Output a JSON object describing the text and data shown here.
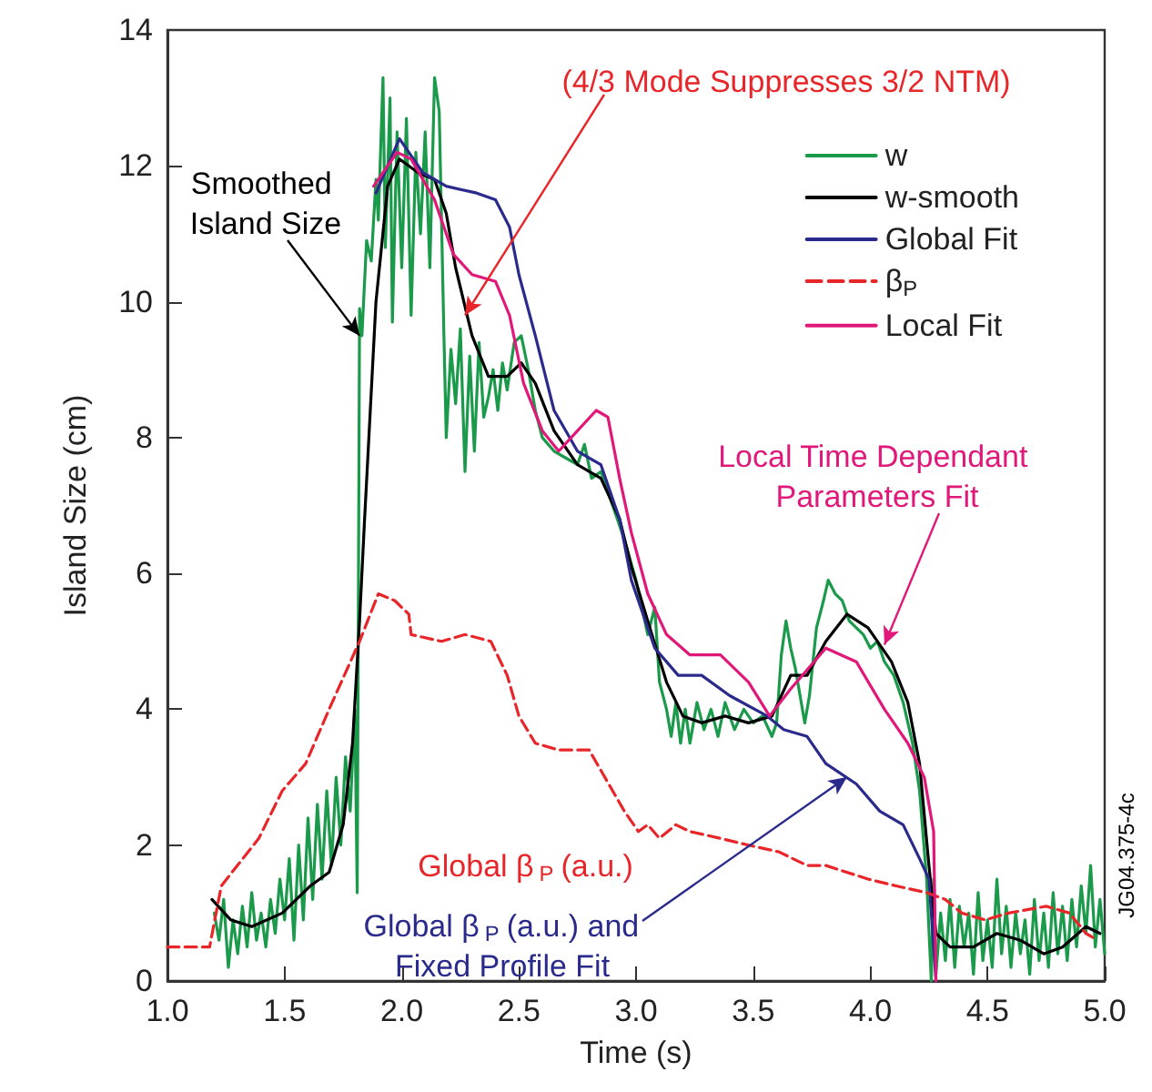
{
  "chart_data": {
    "type": "line",
    "xlabel": "Time (s)",
    "ylabel": "Island Size (cm)",
    "xlim": [
      1,
      5
    ],
    "ylim": [
      0,
      14
    ],
    "xticks": [
      {
        "value": 1,
        "label": "1.0"
      },
      {
        "value": 1.5,
        "label": "1.5"
      },
      {
        "value": 2,
        "label": "2.0"
      },
      {
        "value": 2.5,
        "label": "2.5"
      },
      {
        "value": 3,
        "label": "3.0"
      },
      {
        "value": 3.5,
        "label": "3.5"
      },
      {
        "value": 4,
        "label": "4.0"
      },
      {
        "value": 4.5,
        "label": "4.5"
      },
      {
        "value": 5,
        "label": "5.0"
      }
    ],
    "yticks": [
      0,
      2,
      4,
      6,
      8,
      10,
      12,
      14
    ],
    "legend": "top right",
    "marker": "none",
    "series": [
      {
        "name": "w",
        "color": "#1a9a4a",
        "x": [
          1.2,
          1.22,
          1.24,
          1.26,
          1.28,
          1.3,
          1.32,
          1.34,
          1.36,
          1.38,
          1.4,
          1.42,
          1.44,
          1.46,
          1.48,
          1.5,
          1.52,
          1.54,
          1.56,
          1.58,
          1.6,
          1.62,
          1.64,
          1.66,
          1.68,
          1.7,
          1.72,
          1.74,
          1.76,
          1.78,
          1.8,
          1.81,
          1.82,
          1.83,
          1.85,
          1.87,
          1.89,
          1.9,
          1.92,
          1.93,
          1.95,
          1.96,
          1.98,
          2.0,
          2.02,
          2.04,
          2.06,
          2.08,
          2.1,
          2.12,
          2.14,
          2.16,
          2.18,
          2.19,
          2.21,
          2.23,
          2.25,
          2.27,
          2.29,
          2.31,
          2.33,
          2.35,
          2.37,
          2.39,
          2.41,
          2.43,
          2.45,
          2.48,
          2.51,
          2.54,
          2.57,
          2.6,
          2.65,
          2.7,
          2.75,
          2.78,
          2.81,
          2.85,
          2.9,
          2.95,
          3.0,
          3.05,
          3.08,
          3.1,
          3.13,
          3.15,
          3.17,
          3.19,
          3.21,
          3.23,
          3.26,
          3.29,
          3.32,
          3.35,
          3.38,
          3.42,
          3.46,
          3.5,
          3.54,
          3.58,
          3.6,
          3.62,
          3.64,
          3.66,
          3.68,
          3.7,
          3.72,
          3.74,
          3.77,
          3.8,
          3.82,
          3.85,
          3.88,
          3.91,
          3.94,
          3.97,
          4.0,
          4.03,
          4.06,
          4.1,
          4.14,
          4.18,
          4.21,
          4.24,
          4.26,
          4.27,
          4.28,
          4.3,
          4.32,
          4.34,
          4.36,
          4.38,
          4.4,
          4.42,
          4.44,
          4.46,
          4.48,
          4.5,
          4.52,
          4.54,
          4.56,
          4.58,
          4.6,
          4.62,
          4.64,
          4.66,
          4.68,
          4.7,
          4.72,
          4.74,
          4.76,
          4.78,
          4.8,
          4.82,
          4.84,
          4.86,
          4.88,
          4.9,
          4.92,
          4.94,
          4.96,
          4.98,
          5.0
        ],
        "values": [
          1.0,
          0.6,
          1.2,
          0.2,
          0.9,
          0.4,
          1.1,
          0.5,
          1.3,
          0.6,
          1.0,
          0.5,
          1.2,
          0.7,
          1.5,
          0.9,
          1.8,
          0.6,
          2.0,
          0.9,
          2.4,
          1.2,
          2.6,
          1.5,
          2.8,
          1.7,
          3.0,
          2.0,
          3.3,
          2.5,
          4.0,
          1.3,
          9.9,
          9.5,
          10.9,
          10.6,
          11.8,
          11.2,
          13.3,
          10.8,
          13.0,
          9.7,
          12.5,
          10.5,
          12.7,
          9.8,
          12.2,
          11.0,
          12.5,
          10.5,
          13.3,
          12.8,
          9.5,
          8.0,
          9.3,
          8.5,
          9.6,
          7.5,
          9.2,
          7.8,
          9.4,
          8.3,
          8.6,
          9.0,
          8.4,
          9.1,
          8.7,
          9.4,
          9.5,
          9.0,
          8.4,
          8.0,
          7.8,
          7.7,
          7.6,
          7.9,
          7.4,
          7.5,
          7.0,
          6.5,
          5.9,
          5.1,
          5.5,
          4.4,
          4.0,
          3.6,
          4.1,
          3.5,
          4.0,
          3.5,
          4.1,
          3.7,
          4.0,
          3.6,
          4.1,
          3.7,
          4.0,
          3.8,
          3.9,
          3.6,
          3.8,
          4.8,
          5.3,
          4.9,
          4.6,
          4.2,
          3.8,
          4.2,
          5.2,
          5.6,
          5.9,
          5.7,
          5.6,
          5.3,
          5.2,
          5.1,
          4.9,
          5.0,
          4.7,
          4.5,
          4.1,
          3.5,
          2.8,
          1.5,
          0.0,
          1.5,
          0.1,
          1.0,
          0.3,
          1.2,
          0.2,
          1.1,
          0.5,
          1.0,
          0.1,
          1.3,
          0.3,
          0.9,
          0.2,
          1.5,
          0.4,
          1.1,
          0.2,
          1.0,
          0.4,
          0.9,
          0.1,
          1.2,
          0.3,
          1.0,
          0.2,
          1.3,
          0.4,
          1.1,
          0.3,
          1.2,
          0.5,
          1.4,
          0.7,
          1.7,
          0.5,
          1.2,
          0.4
        ]
      },
      {
        "name": "w-smooth",
        "color": "#000000",
        "x": [
          1.19,
          1.27,
          1.36,
          1.49,
          1.61,
          1.69,
          1.75,
          1.79,
          1.82,
          1.84,
          1.89,
          1.94,
          1.99,
          2.07,
          2.14,
          2.19,
          2.23,
          2.3,
          2.37,
          2.45,
          2.51,
          2.57,
          2.65,
          2.75,
          2.85,
          2.93,
          2.98,
          3.05,
          3.13,
          3.2,
          3.28,
          3.38,
          3.48,
          3.58,
          3.66,
          3.73,
          3.81,
          3.9,
          3.99,
          4.09,
          4.16,
          4.21,
          4.25,
          4.28,
          4.34,
          4.44,
          4.54,
          4.64,
          4.74,
          4.82,
          4.92,
          4.98
        ],
        "values": [
          1.2,
          0.9,
          0.8,
          1.0,
          1.4,
          1.6,
          2.3,
          3.5,
          5.3,
          6.7,
          10.0,
          11.7,
          12.1,
          11.9,
          11.8,
          11.3,
          10.5,
          9.5,
          8.9,
          8.9,
          9.1,
          8.8,
          8.1,
          7.6,
          7.4,
          6.8,
          6.1,
          5.3,
          4.4,
          3.9,
          3.8,
          3.9,
          3.8,
          3.9,
          4.5,
          4.5,
          5.0,
          5.4,
          5.2,
          4.7,
          4.1,
          3.2,
          1.7,
          0.7,
          0.5,
          0.5,
          0.7,
          0.6,
          0.4,
          0.5,
          0.8,
          0.7
        ]
      },
      {
        "name": "Global Fit",
        "color": "#2a2a8c",
        "x": [
          1.89,
          1.99,
          2.09,
          2.19,
          2.32,
          2.4,
          2.46,
          2.5,
          2.57,
          2.65,
          2.75,
          2.85,
          2.93,
          2.98,
          3.08,
          3.18,
          3.28,
          3.4,
          3.56,
          3.63,
          3.73,
          3.81,
          3.94,
          4.04,
          4.14,
          4.21,
          4.25,
          4.28
        ],
        "values": [
          11.6,
          12.4,
          11.9,
          11.7,
          11.6,
          11.5,
          11.1,
          10.4,
          9.5,
          8.4,
          7.8,
          7.6,
          6.8,
          5.9,
          4.9,
          4.5,
          4.5,
          4.2,
          3.9,
          3.7,
          3.6,
          3.2,
          2.9,
          2.5,
          2.3,
          1.8,
          1.5,
          0.0
        ]
      },
      {
        "name": "β$_{P}$",
        "color": "#e8262a",
        "line_style": "dashed",
        "x": [
          1.0,
          1.08,
          1.18,
          1.23,
          1.39,
          1.49,
          1.59,
          1.69,
          1.82,
          1.9,
          1.97,
          2.03,
          2.04,
          2.17,
          2.27,
          2.38,
          2.45,
          2.5,
          2.57,
          2.67,
          2.8,
          2.95,
          3.01,
          3.05,
          3.1,
          3.17,
          3.23,
          3.36,
          3.48,
          3.61,
          3.73,
          3.81,
          3.99,
          4.11,
          4.24,
          4.32,
          4.39,
          4.49,
          4.59,
          4.75,
          4.85,
          4.92,
          4.97
        ],
        "values": [
          0.5,
          0.5,
          0.5,
          1.4,
          2.1,
          2.8,
          3.2,
          4.0,
          5.0,
          5.7,
          5.6,
          5.4,
          5.1,
          5.0,
          5.1,
          5.0,
          4.5,
          3.9,
          3.5,
          3.4,
          3.4,
          2.5,
          2.2,
          2.3,
          2.1,
          2.3,
          2.2,
          2.1,
          2.0,
          1.9,
          1.7,
          1.7,
          1.5,
          1.4,
          1.3,
          1.2,
          1.0,
          0.9,
          1.0,
          1.1,
          1.0,
          0.7,
          0.6
        ]
      },
      {
        "name": "Local Fit",
        "color": "#e0187a",
        "x": [
          1.88,
          1.98,
          2.04,
          2.14,
          2.22,
          2.3,
          2.4,
          2.46,
          2.52,
          2.6,
          2.67,
          2.75,
          2.83,
          2.88,
          2.93,
          2.98,
          3.05,
          3.13,
          3.23,
          3.36,
          3.48,
          3.57,
          3.66,
          3.81,
          3.94,
          4.06,
          4.16,
          4.23,
          4.27,
          4.28
        ],
        "values": [
          11.7,
          12.2,
          12.1,
          11.5,
          10.7,
          10.4,
          10.3,
          9.8,
          8.8,
          8.1,
          7.8,
          8.1,
          8.4,
          8.3,
          7.4,
          6.6,
          5.7,
          5.1,
          4.8,
          4.8,
          4.4,
          3.9,
          4.3,
          4.9,
          4.7,
          4.0,
          3.5,
          3.0,
          2.2,
          0.0
        ]
      }
    ],
    "annotations": [
      {
        "text": "(4/3 Mode Suppresses 3/2 NTM)",
        "x": 2.27,
        "y": 9.8
      },
      {
        "text": "Smoothed Island Size",
        "x": 1.82,
        "y": 9.5
      },
      {
        "text": "Local Time Dependant Parameters Fit",
        "x": 4.06,
        "y": 4.95
      },
      "Global β$_{P}$ (a.u.)",
      {
        "text": "Global β$_{P}$ (a.u.) and Fixed Profile Fit",
        "x": 3.9,
        "y": 3.0
      },
      "JG04.375-4c"
    ]
  }
}
